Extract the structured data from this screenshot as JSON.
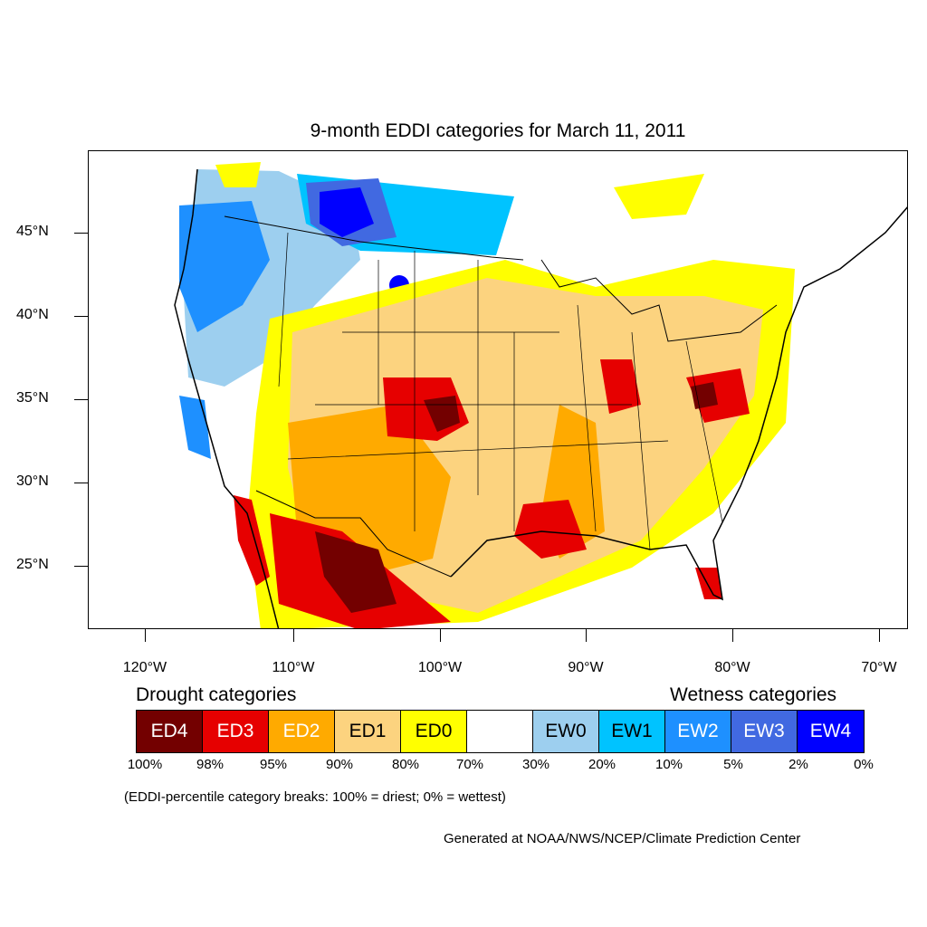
{
  "title": "9-month EDDI categories for March 11, 2011",
  "latitude_labels": [
    "45°N",
    "40°N",
    "35°N",
    "30°N",
    "25°N"
  ],
  "longitude_labels": [
    "120°W",
    "110°W",
    "100°W",
    "90°W",
    "80°W",
    "70°W"
  ],
  "legend": {
    "drought_heading": "Drought categories",
    "wetness_heading": "Wetness categories",
    "categories": [
      {
        "label": "ED4",
        "color": "#730000",
        "text_color": "#ffffff"
      },
      {
        "label": "ED3",
        "color": "#e60000",
        "text_color": "#ffffff"
      },
      {
        "label": "ED2",
        "color": "#ffaa00",
        "text_color": "#ffffff"
      },
      {
        "label": "ED1",
        "color": "#fcd37f",
        "text_color": "#000000"
      },
      {
        "label": "ED0",
        "color": "#ffff00",
        "text_color": "#000000"
      },
      {
        "label": "",
        "color": "#ffffff",
        "text_color": "#000000"
      },
      {
        "label": "EW0",
        "color": "#9dcfef",
        "text_color": "#000000"
      },
      {
        "label": "EW1",
        "color": "#00c3ff",
        "text_color": "#000000"
      },
      {
        "label": "EW2",
        "color": "#1e90ff",
        "text_color": "#ffffff"
      },
      {
        "label": "EW3",
        "color": "#4169e1",
        "text_color": "#ffffff"
      },
      {
        "label": "EW4",
        "color": "#0000ff",
        "text_color": "#ffffff"
      }
    ],
    "percentiles": [
      "100%",
      "98%",
      "95%",
      "90%",
      "80%",
      "70%",
      "30%",
      "20%",
      "10%",
      "5%",
      "2%",
      "0%"
    ]
  },
  "note": "(EDDI-percentile category breaks: 100% = driest; 0% = wettest)",
  "credit": "Generated at NOAA/NWS/NCEP/Climate Prediction Center"
}
